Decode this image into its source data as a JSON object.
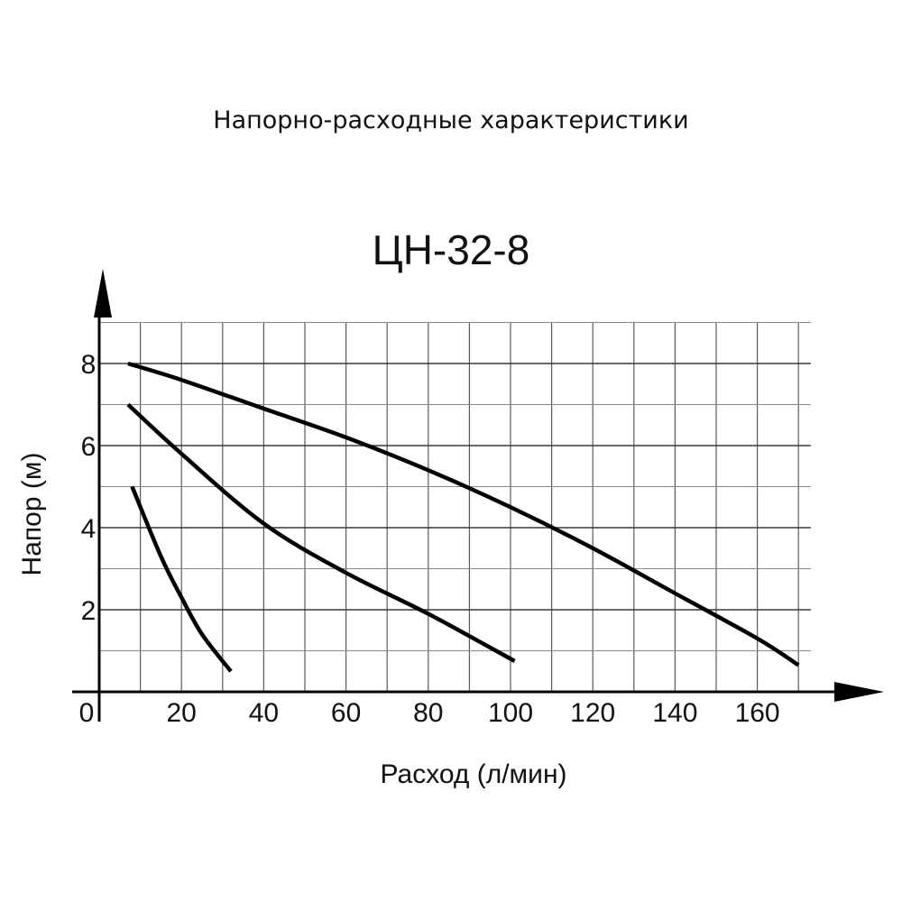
{
  "page_title": "Напорно-расходные характеристики",
  "chart_data": {
    "type": "line",
    "title": "ЦН-32-8",
    "xlabel": "Расход (л/мин)",
    "ylabel": "Напор (м)",
    "xlim": [
      0,
      170
    ],
    "ylim": [
      0,
      9
    ],
    "x_ticks": [
      "0",
      "20",
      "40",
      "60",
      "80",
      "100",
      "120",
      "140",
      "160"
    ],
    "y_ticks": [
      "2",
      "4",
      "6",
      "8"
    ],
    "grid": true,
    "series": [
      {
        "x": [
          7,
          20,
          40,
          60,
          80,
          100,
          120,
          140,
          160,
          170
        ],
        "y": [
          8.0,
          7.6,
          6.9,
          6.2,
          5.4,
          4.5,
          3.5,
          2.4,
          1.3,
          0.65
        ]
      },
      {
        "x": [
          7,
          20,
          40,
          60,
          80,
          101
        ],
        "y": [
          7.0,
          5.8,
          4.1,
          2.9,
          1.9,
          0.75
        ]
      },
      {
        "x": [
          8,
          15,
          20,
          25,
          32
        ],
        "y": [
          5.0,
          3.3,
          2.3,
          1.4,
          0.5
        ]
      }
    ]
  }
}
